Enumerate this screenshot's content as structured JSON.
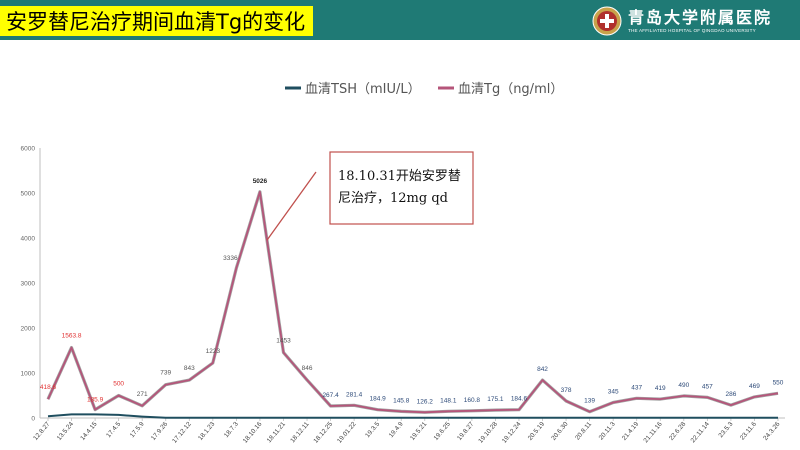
{
  "header": {
    "title": "安罗替尼治疗期间血清Tg的变化",
    "logo_cn": "青岛大学附属医院",
    "logo_en": "THE AFFILIATED HOSPITAL OF QINGDAO UNIVERSITY",
    "bar_color": "#1f7a75",
    "title_bg": "#ffff00"
  },
  "chart_data": {
    "type": "line",
    "title": "",
    "xlabel": "",
    "ylabel": "",
    "ylim": [
      0,
      6000
    ],
    "yticks": [
      0,
      1000,
      2000,
      3000,
      4000,
      5000,
      6000
    ],
    "grid": false,
    "legend_position": "top",
    "categories": [
      "12.8.27",
      "13.5.24",
      "14.4.15",
      "17.4.5",
      "17.5.9",
      "17.9.26",
      "17.12.12",
      "18.1.23",
      "18.7.3",
      "18.10.16",
      "18.11.21",
      "18.12.11",
      "18.12.25",
      "19.01.22",
      "19.3.5",
      "19.4.9",
      "19.5.21",
      "19.6.25",
      "19.8.27",
      "19.10.28",
      "19.12.24",
      "20.5.19",
      "20.6.30",
      "20.8.11",
      "20.11.3",
      "21.4.19",
      "21.11.16",
      "22.6.28",
      "22.11.14",
      "23.5.3",
      "23.11.6",
      "24.3.26"
    ],
    "series": [
      {
        "name": "血清TSH（mIU/L）",
        "color": "#1f4e5f",
        "values": [
          40,
          80,
          80,
          70,
          30,
          5,
          5,
          5,
          5,
          5,
          5,
          5,
          5,
          5,
          5,
          5,
          5,
          5,
          5,
          5,
          5,
          5,
          5,
          5,
          5,
          5,
          5,
          5,
          5,
          5,
          5,
          5
        ]
      },
      {
        "name": "血清Tg（ng/ml）",
        "color": "#b5557a",
        "values": [
          418.6,
          1563.8,
          185.9,
          500,
          271,
          739,
          843,
          1223,
          3336,
          5026,
          1453,
          846,
          267.4,
          281.4,
          184.9,
          145.8,
          126.2,
          148.1,
          160.8,
          175.1,
          184.6,
          842,
          378,
          139,
          345,
          437,
          419,
          490,
          457,
          286,
          469,
          550
        ],
        "labels": [
          "418.6",
          "1563.8",
          "185.9",
          "500",
          "271",
          "739",
          "843",
          "1223",
          "3336",
          "5026",
          "1453",
          "846",
          "267.4",
          "281.4",
          "184.9",
          "145.8",
          "126.2",
          "148.1",
          "160.8",
          "175.1",
          "184.6",
          "842",
          "378",
          "139",
          "345",
          "437",
          "419",
          "490",
          "457",
          "286",
          "469",
          "550"
        ],
        "label_colors": [
          "#e03030",
          "#e03030",
          "#e03030",
          "#e03030",
          "#555555",
          "#555555",
          "#555555",
          "#555555",
          "#555555",
          "#222222",
          "#555555",
          "#555555",
          "#2d4a78",
          "#2d4a78",
          "#2d4a78",
          "#2d4a78",
          "#2d4a78",
          "#2d4a78",
          "#2d4a78",
          "#2d4a78",
          "#2d4a78",
          "#2d4a78",
          "#2d4a78",
          "#2d4a78",
          "#2d4a78",
          "#2d4a78",
          "#2d4a78",
          "#2d4a78",
          "#2d4a78",
          "#2d4a78",
          "#2d4a78",
          "#2d4a78"
        ]
      }
    ],
    "annotation": {
      "lines": [
        "18.10.31开始安罗替",
        "尼治疗，12mg qd"
      ],
      "target_index": 9,
      "border_color": "#c0504d"
    }
  }
}
